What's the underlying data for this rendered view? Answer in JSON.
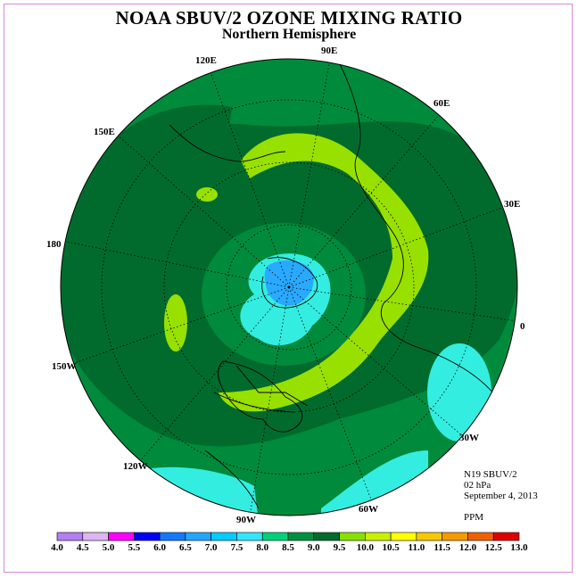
{
  "header": {
    "title": "NOAA SBUV/2 OZONE MIXING RATIO",
    "subtitle": "Northern Hemisphere"
  },
  "meridians": {
    "e120": "120E",
    "e90": "90E",
    "e60": "60E",
    "e150": "150E",
    "e30": "30E",
    "d180": "180",
    "d0": "0",
    "w150": "150W",
    "w30": "30W",
    "w120": "120W",
    "w90": "90W",
    "w60": "60W"
  },
  "info": {
    "instrument": "N19 SBUV/2",
    "level": "02 hPa",
    "date": "September 4, 2013",
    "units": "PPM"
  },
  "colorbar": {
    "ticks": [
      "4.0",
      "4.5",
      "5.0",
      "5.5",
      "6.0",
      "6.5",
      "7.0",
      "7.5",
      "8.0",
      "8.5",
      "9.0",
      "9.5",
      "10.0",
      "10.5",
      "11.0",
      "11.5",
      "12.0",
      "12.5",
      "13.0"
    ],
    "colors": [
      "#b57df2",
      "#dcb6f2",
      "#ff00ff",
      "#0000f5",
      "#1478ff",
      "#22a6ff",
      "#00ccff",
      "#33e6ff",
      "#00d27a",
      "#009140",
      "#006b2d",
      "#88e000",
      "#c8f000",
      "#ffff00",
      "#f7c800",
      "#f59a00",
      "#f06000",
      "#e00000",
      "#8b5a3c"
    ]
  },
  "map_colors": {
    "ocean_outer": "#008a3c",
    "band_dark": "#006b2d",
    "band_light": "#98e000",
    "polar_cyan": "#33eee0",
    "polar_blue": "#29a9ff",
    "warm_blobs": "#33eee0",
    "coast": "#000000"
  }
}
